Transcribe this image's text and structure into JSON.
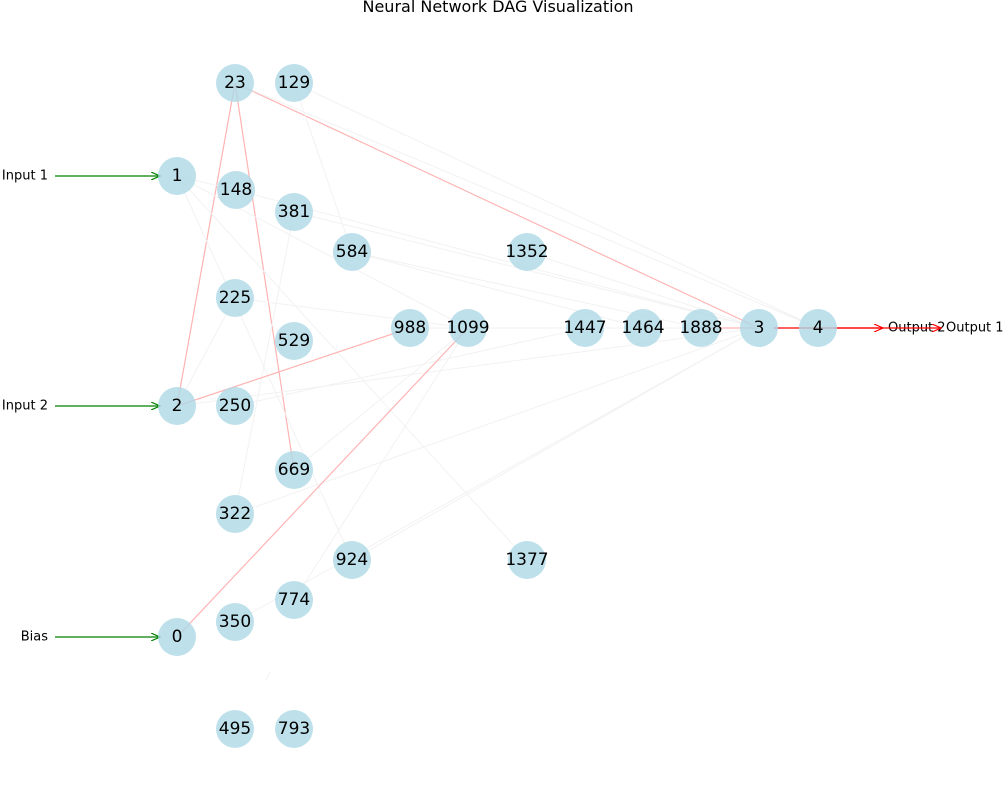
{
  "title": "Neural Network DAG Visualization",
  "colors": {
    "node": "#add8e6",
    "input_arrow": "#008000",
    "output_arrow": "#ff0000",
    "positive_edge": "#ffb3b3",
    "weak_edge": "#f2f2f2"
  },
  "nodes": [
    "23",
    "129",
    "1",
    "148",
    "381",
    "584",
    "1352",
    "225",
    "529",
    "988",
    "1099",
    "1447",
    "1464",
    "1888",
    "3",
    "4",
    "2",
    "250",
    "669",
    "322",
    "924",
    "1377",
    "774",
    "0",
    "350",
    "495",
    "793"
  ],
  "inputs": [
    {
      "label": "Input 1",
      "target": "1"
    },
    {
      "label": "Input 2",
      "target": "2"
    },
    {
      "label": "Bias",
      "target": "0"
    }
  ],
  "outputs": [
    {
      "label": "Output 2",
      "source": "3"
    },
    {
      "label": "Output 1",
      "source": "4"
    }
  ],
  "edges": [
    {
      "from": "23",
      "to": "2",
      "strong": true
    },
    {
      "from": "23",
      "to": "669",
      "strong": true
    },
    {
      "from": "23",
      "to": "3",
      "strong": true
    },
    {
      "from": "23",
      "to": "4",
      "strong": false
    },
    {
      "from": "129",
      "to": "584",
      "strong": false
    },
    {
      "from": "129",
      "to": "4",
      "strong": false
    },
    {
      "from": "1",
      "to": "148",
      "strong": false
    },
    {
      "from": "1",
      "to": "924",
      "strong": false
    },
    {
      "from": "1",
      "to": "1377",
      "strong": false
    },
    {
      "from": "1",
      "to": "1099",
      "strong": false
    },
    {
      "from": "148",
      "to": "3",
      "strong": false
    },
    {
      "from": "381",
      "to": "3",
      "strong": false
    },
    {
      "from": "381",
      "to": "322",
      "strong": false
    },
    {
      "from": "584",
      "to": "1888",
      "strong": false
    },
    {
      "from": "584",
      "to": "1464",
      "strong": false
    },
    {
      "from": "225",
      "to": "2",
      "strong": false
    },
    {
      "from": "225",
      "to": "1099",
      "strong": false
    },
    {
      "from": "2",
      "to": "988",
      "strong": true
    },
    {
      "from": "2",
      "to": "3",
      "strong": false
    },
    {
      "from": "250",
      "to": "1447",
      "strong": false
    },
    {
      "from": "669",
      "to": "1099",
      "strong": false
    },
    {
      "from": "322",
      "to": "3",
      "strong": false
    },
    {
      "from": "924",
      "to": "3",
      "strong": false
    },
    {
      "from": "774",
      "to": "1099",
      "strong": false
    },
    {
      "from": "0",
      "to": "1099",
      "strong": true
    },
    {
      "from": "350",
      "to": "3",
      "strong": false
    },
    {
      "from": "1099",
      "to": "3",
      "strong": false
    },
    {
      "from": "1447",
      "to": "3",
      "strong": false
    },
    {
      "from": "1464",
      "to": "3",
      "strong": false
    },
    {
      "from": "1888",
      "to": "3",
      "strong": true
    },
    {
      "from": "1352",
      "to": "3",
      "strong": false
    },
    {
      "from": "988",
      "to": "1099",
      "strong": false
    }
  ]
}
